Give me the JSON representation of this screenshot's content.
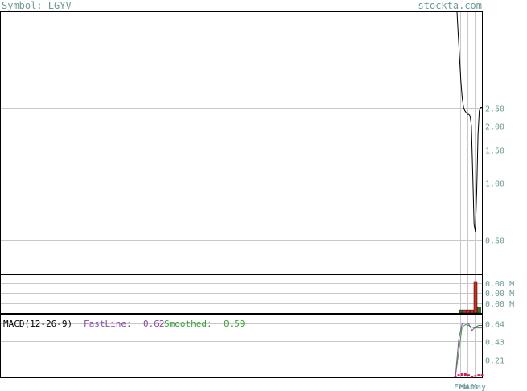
{
  "header": {
    "symbol_label": "Symbol: LGYV",
    "site": "stockta.com"
  },
  "colors": {
    "axis_text": "#6b9a9a",
    "grid": "#c8c8c8",
    "price_line": "#000000",
    "volume_up": "#1e7a1e",
    "volume_down": "#d42a1a",
    "macd_fast": "#8e44ad",
    "macd_smooth": "#2ea82e",
    "macd_hist": "#e0185a"
  },
  "chart_data": [
    {
      "type": "line",
      "panel": "price",
      "yscale": "log",
      "ylim": [
        0.33,
        8
      ],
      "y_ticks": [
        2.5,
        2.0,
        1.5,
        1.0,
        0.5
      ],
      "y_tick_labels": [
        "2.50",
        "2.00",
        "1.50",
        "1.00",
        "0.50"
      ],
      "grid": true,
      "series": [
        {
          "values": [
            8.0,
            6.0,
            4.5,
            3.4,
            2.8,
            2.5,
            2.4,
            2.35,
            2.3,
            2.3,
            2.25,
            2.0,
            1.1,
            0.6,
            0.55,
            0.9,
            1.8,
            2.4,
            2.5,
            2.5
          ]
        }
      ]
    },
    {
      "type": "bar",
      "panel": "volume",
      "y_tick_labels": [
        "0.00 M",
        "0.00 M",
        "0.00 M"
      ],
      "grid": true,
      "values": [
        0.1,
        0.1,
        0.1,
        0.1,
        1.0,
        0.2
      ],
      "directions": [
        "up",
        "down",
        "down",
        "down",
        "down",
        "up"
      ]
    },
    {
      "type": "line",
      "panel": "macd",
      "title": "MACD(12-26-9)",
      "fast_label": "FastLine:",
      "fast_value": "0.62",
      "smooth_label": "Smoothed:",
      "smooth_value": "0.59",
      "ylim": [
        0.0,
        0.75
      ],
      "y_ticks": [
        0.64,
        0.43,
        0.21
      ],
      "y_tick_labels": [
        "0.64",
        "0.43",
        "0.21"
      ],
      "grid": true,
      "x_tick_labels": [
        "Feb",
        "Mar",
        "Apr",
        "May"
      ],
      "series": [
        {
          "name": "FastLine",
          "values": [
            0.0,
            0.45,
            0.64,
            0.65,
            0.64,
            0.56,
            0.6,
            0.62,
            0.62
          ]
        },
        {
          "name": "Smoothed",
          "values": [
            0.0,
            0.3,
            0.6,
            0.63,
            0.62,
            0.6,
            0.59,
            0.59,
            0.59
          ]
        }
      ],
      "histogram": [
        0.0,
        0.03,
        0.05,
        0.05,
        0.03,
        -0.04,
        0.01,
        0.03,
        0.03
      ]
    }
  ]
}
